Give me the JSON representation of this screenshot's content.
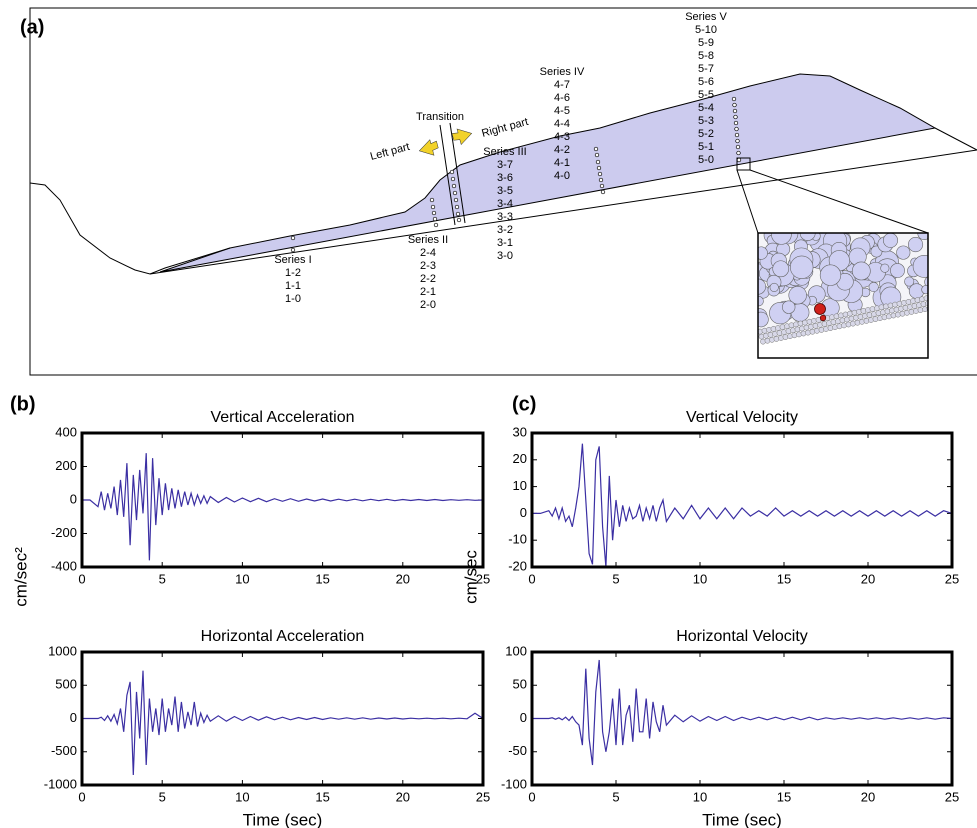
{
  "figure": {
    "panel_labels": [
      "(a)",
      "(b)",
      "(c)"
    ]
  },
  "diagram": {
    "transition": "Transition",
    "left_part": "Left part",
    "right_part": "Right part",
    "series": [
      {
        "name": "Series I",
        "stations": [
          "1-2",
          "1-1",
          "1-0"
        ]
      },
      {
        "name": "Series II",
        "stations": [
          "2-4",
          "2-3",
          "2-2",
          "2-1",
          "2-0"
        ]
      },
      {
        "name": "Series III",
        "stations": [
          "3-7",
          "3-6",
          "3-5",
          "3-4",
          "3-3",
          "3-2",
          "3-1",
          "3-0"
        ]
      },
      {
        "name": "Series IV",
        "stations": [
          "4-7",
          "4-6",
          "4-5",
          "4-4",
          "4-3",
          "4-2",
          "4-1",
          "4-0"
        ]
      },
      {
        "name": "Series V",
        "stations": [
          "5-10",
          "5-9",
          "5-8",
          "5-7",
          "5-6",
          "5-5",
          "5-4",
          "5-3",
          "5-2",
          "5-1",
          "5-0"
        ]
      }
    ]
  },
  "chart_data": [
    {
      "type": "line",
      "title": "Vertical Acceleration",
      "ylabel": "cm/sec²",
      "x": [
        0,
        0.5,
        1,
        1.2,
        1.4,
        1.6,
        1.8,
        2,
        2.2,
        2.4,
        2.6,
        2.8,
        3,
        3.2,
        3.4,
        3.6,
        3.8,
        4,
        4.2,
        4.4,
        4.6,
        4.8,
        5,
        5.2,
        5.4,
        5.6,
        5.8,
        6,
        6.2,
        6.4,
        6.6,
        6.8,
        7,
        7.2,
        7.4,
        7.6,
        7.8,
        8,
        8.5,
        9,
        9.5,
        10,
        10.5,
        11,
        11.5,
        12,
        12.5,
        13,
        13.5,
        14,
        14.5,
        15,
        15.5,
        16,
        16.5,
        17,
        17.5,
        18,
        18.5,
        19,
        19.5,
        20,
        20.5,
        21,
        21.5,
        22,
        22.5,
        23,
        23.5,
        24,
        24.5,
        25
      ],
      "series": [
        {
          "color": "#3b2fa3",
          "values": [
            0,
            0,
            -40,
            50,
            -60,
            40,
            -50,
            80,
            -90,
            120,
            -100,
            220,
            -270,
            150,
            -120,
            180,
            -80,
            280,
            -360,
            250,
            -150,
            130,
            -90,
            100,
            -60,
            70,
            -50,
            60,
            -40,
            50,
            -30,
            40,
            -30,
            30,
            -20,
            25,
            -20,
            20,
            -15,
            15,
            -12,
            12,
            -10,
            10,
            -10,
            8,
            -8,
            8,
            -8,
            6,
            -6,
            6,
            -6,
            5,
            -5,
            5,
            -5,
            4,
            -4,
            4,
            -4,
            3,
            -3,
            3,
            -3,
            3,
            -3,
            2,
            -2,
            2,
            -2,
            0
          ]
        }
      ],
      "xlim": [
        0,
        25
      ],
      "xticks": [
        0,
        5,
        10,
        15,
        20,
        25
      ],
      "ylim": [
        -400,
        400
      ],
      "yticks": [
        -400,
        -200,
        0,
        200,
        400
      ]
    },
    {
      "type": "line",
      "title": "Horizontal Acceleration",
      "xlabel": "Time (sec)",
      "x": [
        0,
        0.5,
        1,
        1.2,
        1.4,
        1.6,
        1.8,
        2,
        2.2,
        2.4,
        2.6,
        2.8,
        3,
        3.2,
        3.4,
        3.6,
        3.8,
        4,
        4.2,
        4.4,
        4.6,
        4.8,
        5,
        5.2,
        5.4,
        5.6,
        5.8,
        6,
        6.2,
        6.4,
        6.6,
        6.8,
        7,
        7.2,
        7.4,
        7.6,
        7.8,
        8,
        8.5,
        9,
        9.5,
        10,
        10.5,
        11,
        11.5,
        12,
        12.5,
        13,
        13.5,
        14,
        14.5,
        15,
        15.5,
        16,
        16.5,
        17,
        17.5,
        18,
        18.5,
        19,
        19.5,
        20,
        20.5,
        21,
        21.5,
        22,
        22.5,
        23,
        23.5,
        24,
        24.5,
        25
      ],
      "series": [
        {
          "color": "#3b2fa3",
          "values": [
            0,
            0,
            0,
            20,
            -30,
            40,
            -40,
            60,
            -80,
            150,
            -200,
            350,
            550,
            -850,
            400,
            -300,
            720,
            -700,
            300,
            -200,
            150,
            -250,
            300,
            -200,
            150,
            -100,
            330,
            -200,
            250,
            -150,
            100,
            -100,
            250,
            -120,
            80,
            -60,
            50,
            -40,
            40,
            -40,
            30,
            -30,
            30,
            -25,
            25,
            -20,
            20,
            -20,
            15,
            -15,
            15,
            -15,
            10,
            -10,
            10,
            -10,
            10,
            -10,
            8,
            -8,
            8,
            -8,
            5,
            -5,
            5,
            -5,
            5,
            -5,
            5,
            -5,
            80,
            0
          ]
        }
      ],
      "xlim": [
        0,
        25
      ],
      "xticks": [
        0,
        5,
        10,
        15,
        20,
        25
      ],
      "ylim": [
        -1000,
        1000
      ],
      "yticks": [
        -1000,
        -500,
        0,
        500,
        1000
      ]
    },
    {
      "type": "line",
      "title": "Vertical Velocity",
      "ylabel": "cm/sec",
      "x": [
        0,
        0.5,
        1,
        1.2,
        1.4,
        1.6,
        1.8,
        2,
        2.2,
        2.4,
        2.6,
        2.8,
        3,
        3.2,
        3.4,
        3.6,
        3.8,
        4,
        4.2,
        4.4,
        4.6,
        4.8,
        5,
        5.2,
        5.4,
        5.6,
        5.8,
        6,
        6.2,
        6.4,
        6.6,
        6.8,
        7,
        7.2,
        7.4,
        7.6,
        7.8,
        8,
        8.5,
        9,
        9.5,
        10,
        10.5,
        11,
        11.5,
        12,
        12.5,
        13,
        13.5,
        14,
        14.5,
        15,
        15.5,
        16,
        16.5,
        17,
        17.5,
        18,
        18.5,
        19,
        19.5,
        20,
        20.5,
        21,
        21.5,
        22,
        22.5,
        23,
        23.5,
        24,
        24.5,
        25
      ],
      "series": [
        {
          "color": "#3b2fa3",
          "values": [
            0,
            0,
            1,
            -1,
            2,
            -2,
            2,
            -3,
            -1,
            -5,
            2,
            10,
            26,
            5,
            -15,
            -19,
            20,
            25,
            -5,
            -20,
            14,
            -10,
            5,
            -5,
            3,
            -3,
            2,
            -2,
            -1,
            3,
            -3,
            2,
            -2,
            3,
            -3,
            2,
            5,
            -3,
            2,
            -2,
            3,
            -2,
            2,
            -2,
            2,
            -2,
            2,
            -1,
            1,
            -1,
            2,
            -1,
            1,
            -1,
            1,
            -1,
            1,
            -1,
            1,
            -1,
            1,
            -1,
            1,
            -1,
            1,
            -1,
            1,
            -1,
            1,
            -1,
            1,
            0
          ]
        }
      ],
      "xlim": [
        0,
        25
      ],
      "xticks": [
        0,
        5,
        10,
        15,
        20,
        25
      ],
      "ylim": [
        -20,
        30
      ],
      "yticks": [
        -20,
        -10,
        0,
        10,
        20,
        30
      ]
    },
    {
      "type": "line",
      "title": "Horizontal Velocity",
      "xlabel": "Time (sec)",
      "x": [
        0,
        0.5,
        1,
        1.2,
        1.4,
        1.6,
        1.8,
        2,
        2.2,
        2.4,
        2.6,
        2.8,
        3,
        3.2,
        3.4,
        3.6,
        3.8,
        4,
        4.2,
        4.4,
        4.6,
        4.8,
        5,
        5.2,
        5.4,
        5.6,
        5.8,
        6,
        6.2,
        6.4,
        6.6,
        6.8,
        7,
        7.2,
        7.4,
        7.6,
        7.8,
        8,
        8.5,
        9,
        9.5,
        10,
        10.5,
        11,
        11.5,
        12,
        12.5,
        13,
        13.5,
        14,
        14.5,
        15,
        15.5,
        16,
        16.5,
        17,
        17.5,
        18,
        18.5,
        19,
        19.5,
        20,
        20.5,
        21,
        21.5,
        22,
        22.5,
        23,
        23.5,
        24,
        24.5,
        25
      ],
      "series": [
        {
          "color": "#3b2fa3",
          "values": [
            0,
            0,
            0,
            1,
            -1,
            1,
            -2,
            2,
            -3,
            3,
            -5,
            -10,
            -40,
            75,
            -30,
            -70,
            40,
            88,
            -20,
            -50,
            -20,
            30,
            -40,
            45,
            -40,
            5,
            20,
            -35,
            45,
            -20,
            -20,
            30,
            -30,
            25,
            -5,
            -20,
            20,
            -10,
            5,
            -5,
            4,
            -4,
            3,
            -3,
            3,
            -3,
            2,
            -2,
            2,
            -2,
            2,
            -2,
            2,
            -2,
            2,
            -2,
            1,
            -1,
            1,
            -1,
            1,
            -1,
            1,
            -1,
            1,
            -1,
            1,
            -1,
            1,
            -1,
            1,
            0
          ]
        }
      ],
      "xlim": [
        0,
        25
      ],
      "xticks": [
        0,
        5,
        10,
        15,
        20,
        25
      ],
      "ylim": [
        -100,
        100
      ],
      "yticks": [
        -100,
        -50,
        0,
        50,
        100
      ]
    }
  ]
}
